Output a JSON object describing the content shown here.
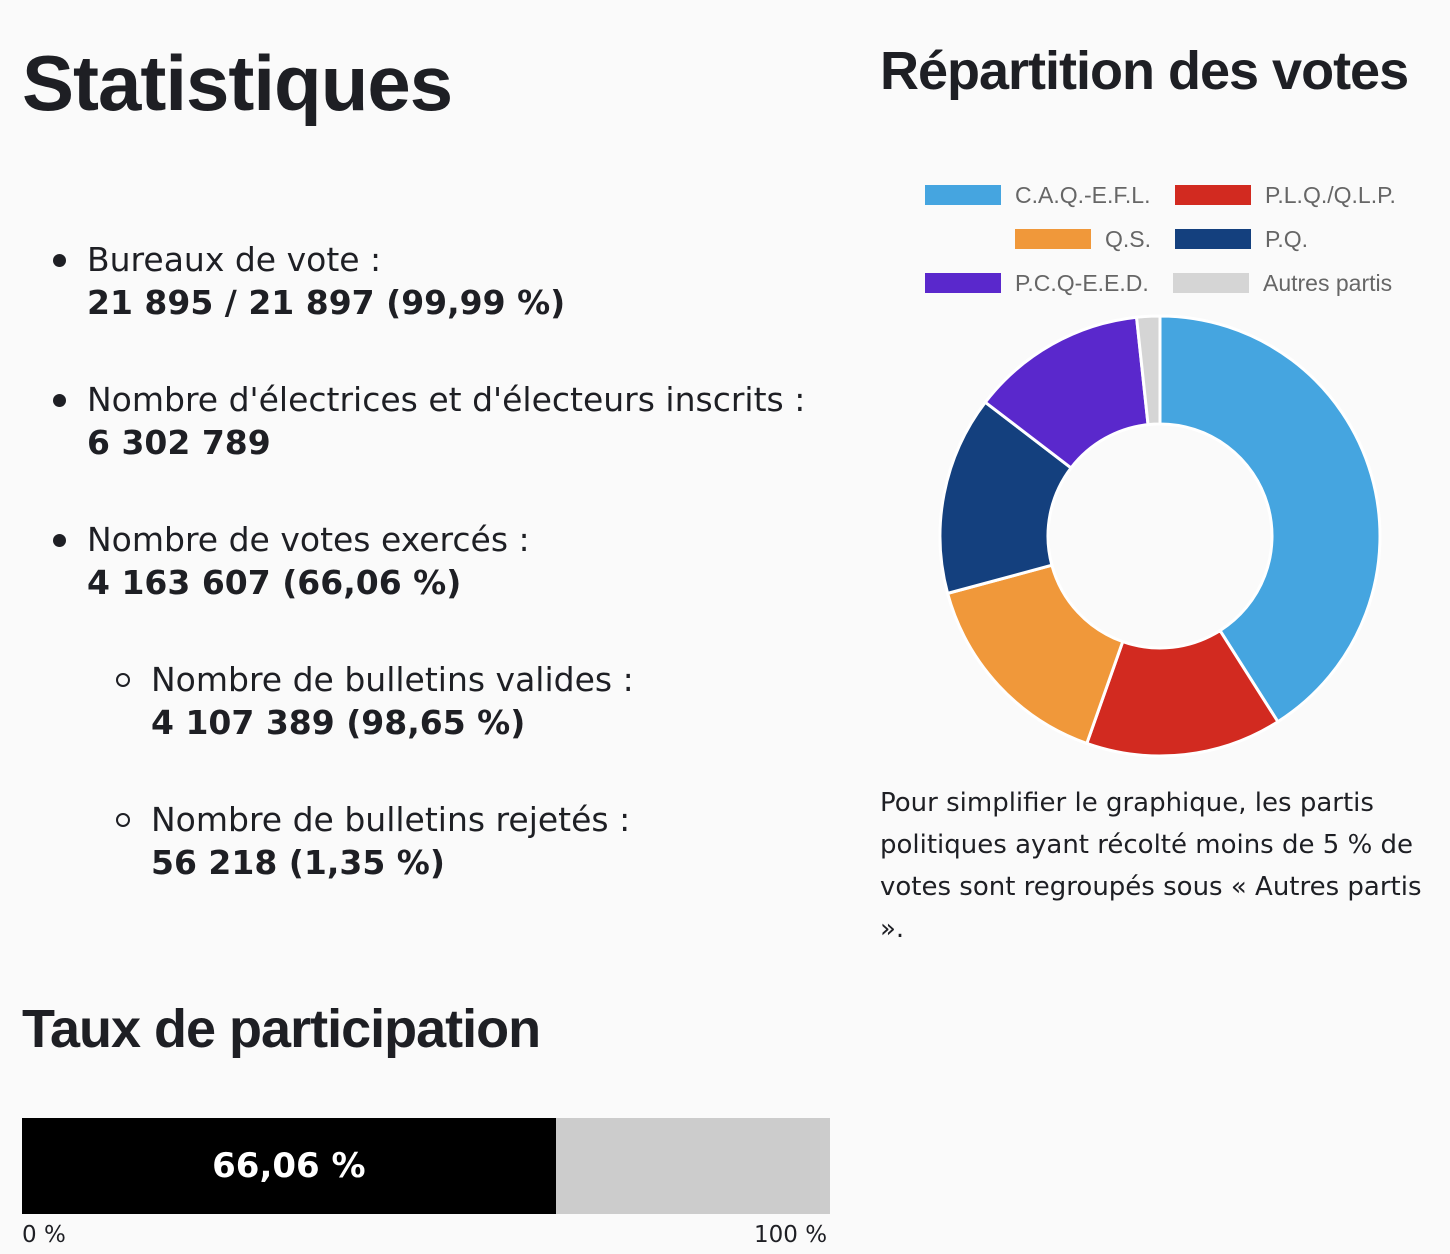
{
  "headings": {
    "statistiques": "Statistiques",
    "repartition": "Répartition des votes",
    "participation": "Taux de participation"
  },
  "stats": {
    "bureaux": {
      "label": "Bureaux de vote :",
      "value": "21 895 / 21 897 (99,99 %)"
    },
    "inscrits": {
      "label": "Nombre d'électrices et d'électeurs inscrits :",
      "value": "6 302 789"
    },
    "exerces": {
      "label": "Nombre de votes exercés :",
      "value": "4 163 607 (66,06 %)"
    },
    "valides": {
      "label": "Nombre de bulletins valides :",
      "value": "4 107 389 (98,65 %)"
    },
    "rejetes": {
      "label": "Nombre de bulletins rejetés :",
      "value": "56 218 (1,35 %)"
    }
  },
  "chart_data": {
    "type": "pie",
    "variant": "doughnut",
    "legend_position": "top",
    "categories": [
      "C.A.Q.-E.F.L.",
      "P.L.Q./Q.L.P.",
      "Q.S.",
      "P.Q.",
      "P.C.Q-E.E.D.",
      "Autres partis"
    ],
    "values": [
      41.0,
      14.4,
      15.4,
      14.6,
      12.9,
      1.7
    ],
    "colors": [
      "#45a5e0",
      "#d22a20",
      "#f0983a",
      "#14407e",
      "#5a28cc",
      "#d5d5d5"
    ]
  },
  "note": "Pour simplifier le graphique, les partis politiques ayant récolté moins de 5 % de votes sont regroupés sous « Autres partis ».",
  "participation": {
    "value": 66.06,
    "label": "66,06 %",
    "min_label": "0 %",
    "max_label": "100 %",
    "fill_color": "#000000",
    "track_color": "#cccccc"
  }
}
